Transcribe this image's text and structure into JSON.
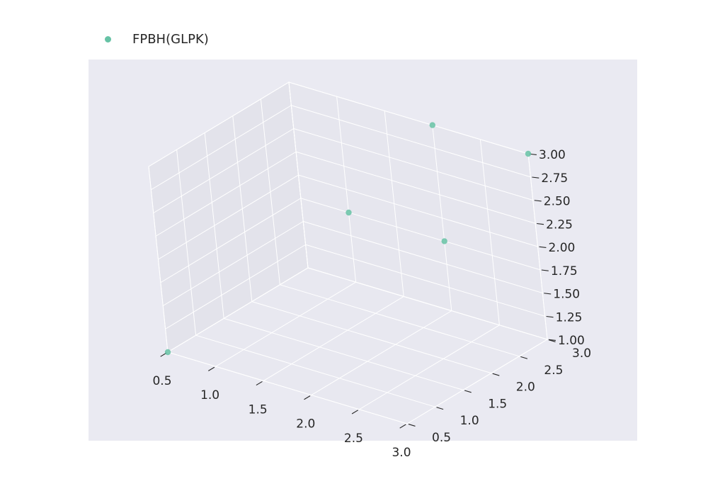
{
  "chart_data": {
    "type": "scatter",
    "projection": "3d",
    "title": "",
    "xlabel": "",
    "ylabel": "",
    "zlabel": "",
    "xlim": [
      0.5,
      3.0
    ],
    "ylim": [
      0.5,
      3.0
    ],
    "zlim": [
      1.0,
      3.0
    ],
    "x_ticks": [
      "0.5",
      "1.0",
      "1.5",
      "2.0",
      "2.5",
      "3.0"
    ],
    "y_ticks": [
      "0.5",
      "1.0",
      "1.5",
      "2.0",
      "2.5",
      "3.0"
    ],
    "z_ticks": [
      "1.00",
      "1.25",
      "1.50",
      "1.75",
      "2.00",
      "2.25",
      "2.50",
      "2.75",
      "3.00"
    ],
    "grid": true,
    "legend_position": "top-left",
    "series": [
      {
        "name": "FPBH(GLPK)",
        "color": "#66c2a5",
        "points": [
          {
            "x": 0.5,
            "y": 0.5,
            "z": 1.0
          },
          {
            "x": 1.0,
            "y": 3.0,
            "z": 1.75
          },
          {
            "x": 2.0,
            "y": 3.0,
            "z": 1.75
          },
          {
            "x": 2.0,
            "y": 3.0,
            "z": 3.0
          },
          {
            "x": 3.0,
            "y": 3.0,
            "z": 3.0
          }
        ]
      }
    ]
  }
}
